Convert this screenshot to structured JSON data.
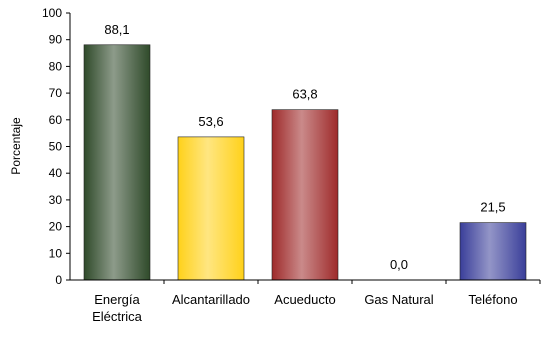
{
  "chart_data": {
    "type": "bar",
    "categories": [
      [
        "Energía",
        "Eléctrica"
      ],
      [
        "Alcantarillado"
      ],
      [
        "Acueducto"
      ],
      [
        "Gas Natural"
      ],
      [
        "Teléfono"
      ]
    ],
    "values": [
      88.1,
      53.6,
      63.8,
      0.0,
      21.5
    ],
    "value_labels": [
      "88,1",
      "53,6",
      "63,8",
      "0,0",
      "21,5"
    ],
    "bar_colors": [
      "#2f4a2a",
      "#ffd11a",
      "#9e2a2a",
      "#bfbfbf",
      "#3a3f9a"
    ],
    "title": "",
    "xlabel": "",
    "ylabel": "Porcentaje",
    "ylim": [
      0,
      100
    ],
    "yticks": [
      "0",
      "10",
      "20",
      "30",
      "40",
      "50",
      "60",
      "70",
      "80",
      "90",
      "100"
    ],
    "grid": false,
    "legend": "none"
  }
}
